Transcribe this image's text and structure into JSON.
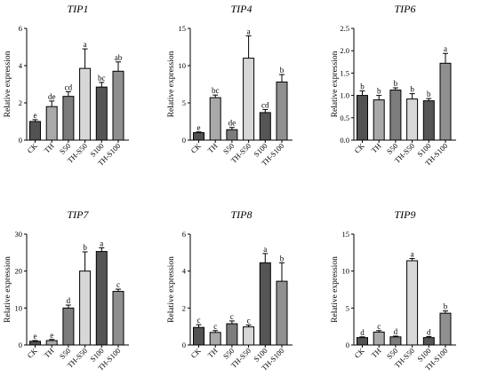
{
  "chart_data": [
    {
      "type": "bar",
      "title": "TIP1",
      "ylabel": "Relative expression",
      "categories": [
        "CK",
        "TH",
        "S50",
        "TH-S50",
        "S100",
        "TH-S100"
      ],
      "values": [
        1.0,
        1.8,
        2.35,
        3.85,
        2.85,
        3.7
      ],
      "errors": [
        0.1,
        0.3,
        0.25,
        1.05,
        0.25,
        0.5
      ],
      "labels": [
        "e",
        "de",
        "cd",
        "a",
        "bc",
        "ab"
      ],
      "ylim": [
        0,
        6
      ],
      "yticks": [
        0,
        2,
        4,
        6
      ],
      "colors": [
        "#525252",
        "#a9a9a9",
        "#7c7c7c",
        "#d7d7d7",
        "#555555",
        "#8f8f8f"
      ]
    },
    {
      "type": "bar",
      "title": "TIP4",
      "ylabel": "Relative expression",
      "categories": [
        "CK",
        "TH",
        "S50",
        "TH-S50",
        "S100",
        "TH-S100"
      ],
      "values": [
        1.0,
        5.7,
        1.4,
        11.0,
        3.7,
        7.8
      ],
      "errors": [
        0.1,
        0.35,
        0.3,
        3.0,
        0.4,
        1.0
      ],
      "labels": [
        "e",
        "bc",
        "de",
        "a",
        "cd",
        "b"
      ],
      "ylim": [
        0,
        15
      ],
      "yticks": [
        0,
        5,
        10,
        15
      ],
      "colors": [
        "#525252",
        "#a9a9a9",
        "#7c7c7c",
        "#d7d7d7",
        "#555555",
        "#8f8f8f"
      ]
    },
    {
      "type": "bar",
      "title": "TIP6",
      "ylabel": "Relative expression",
      "categories": [
        "CK",
        "TH",
        "S50",
        "TH-S50",
        "S100",
        "TH-S100"
      ],
      "values": [
        1.0,
        0.9,
        1.12,
        0.92,
        0.88,
        1.72
      ],
      "errors": [
        0.1,
        0.1,
        0.05,
        0.12,
        0.05,
        0.22
      ],
      "labels": [
        "b",
        "b",
        "b",
        "b",
        "b",
        "a"
      ],
      "ylim": [
        0,
        2.5
      ],
      "yticks": [
        0,
        0.5,
        1.0,
        1.5,
        2.0,
        2.5
      ],
      "ytick_labels": [
        "0.0",
        "0.5",
        "1.0",
        "1.5",
        "2.0",
        "2.5"
      ],
      "colors": [
        "#525252",
        "#a9a9a9",
        "#7c7c7c",
        "#d7d7d7",
        "#555555",
        "#8f8f8f"
      ]
    },
    {
      "type": "bar",
      "title": "TIP7",
      "ylabel": "Relative expression",
      "categories": [
        "CK",
        "TH",
        "S50",
        "TH-S50",
        "S100",
        "TH-S100"
      ],
      "values": [
        1.0,
        1.2,
        10.0,
        20.0,
        25.3,
        14.5
      ],
      "errors": [
        0.2,
        0.3,
        0.8,
        5.2,
        1.0,
        0.6
      ],
      "labels": [
        "e",
        "e",
        "d",
        "b",
        "a",
        "c"
      ],
      "ylim": [
        0,
        30
      ],
      "yticks": [
        0,
        10,
        20,
        30
      ],
      "colors": [
        "#525252",
        "#a9a9a9",
        "#7c7c7c",
        "#d7d7d7",
        "#555555",
        "#8f8f8f"
      ]
    },
    {
      "type": "bar",
      "title": "TIP8",
      "ylabel": "Relative expression",
      "categories": [
        "CK",
        "TH",
        "S50",
        "TH-S50",
        "S100",
        "TH-S100"
      ],
      "values": [
        0.95,
        0.68,
        1.15,
        0.98,
        4.45,
        3.45
      ],
      "errors": [
        0.15,
        0.1,
        0.15,
        0.1,
        0.5,
        1.0
      ],
      "labels": [
        "c",
        "c",
        "c",
        "c",
        "a",
        "b"
      ],
      "ylim": [
        0,
        6
      ],
      "yticks": [
        0,
        2,
        4,
        6
      ],
      "colors": [
        "#525252",
        "#a9a9a9",
        "#7c7c7c",
        "#d7d7d7",
        "#555555",
        "#8f8f8f"
      ]
    },
    {
      "type": "bar",
      "title": "TIP9",
      "ylabel": "Relative expression",
      "categories": [
        "CK",
        "TH",
        "S50",
        "TH-S50",
        "S100",
        "TH-S100"
      ],
      "values": [
        1.0,
        1.75,
        1.1,
        11.4,
        1.0,
        4.3
      ],
      "errors": [
        0.1,
        0.2,
        0.1,
        0.3,
        0.15,
        0.3
      ],
      "labels": [
        "d",
        "c",
        "d",
        "a",
        "d",
        "b"
      ],
      "ylim": [
        0,
        15
      ],
      "yticks": [
        0,
        5,
        10,
        15
      ],
      "colors": [
        "#525252",
        "#a9a9a9",
        "#7c7c7c",
        "#d7d7d7",
        "#555555",
        "#8f8f8f"
      ]
    }
  ]
}
